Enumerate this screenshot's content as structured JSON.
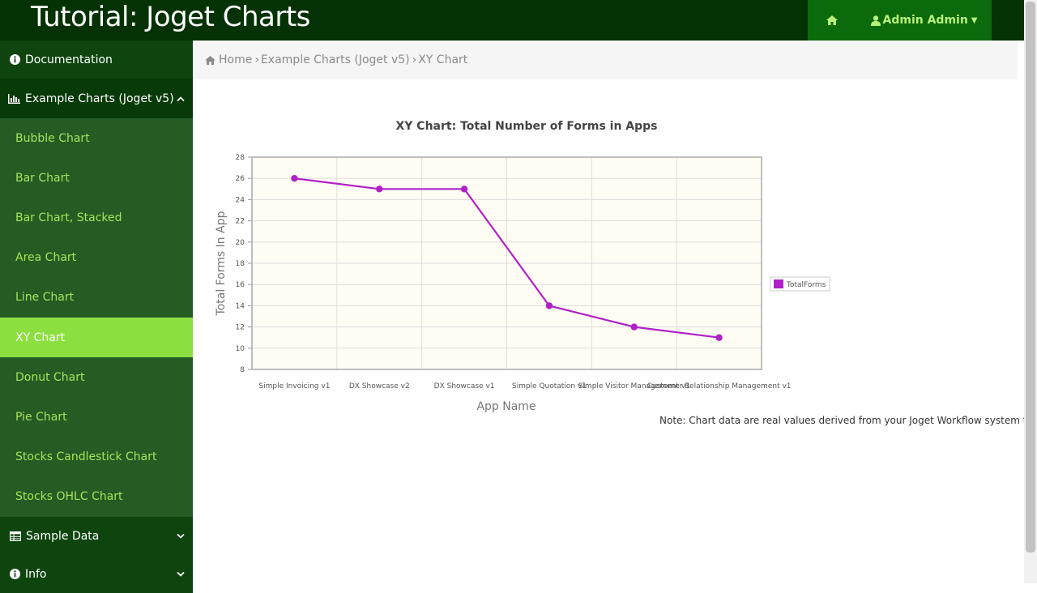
{
  "header": {
    "title": "Tutorial: Joget Charts",
    "user_label": "Admin Admin",
    "colors": {
      "bar": "#043204",
      "accent": "#0b6a0b",
      "link": "#b9f07a"
    }
  },
  "sidebar": {
    "documentation": "Documentation",
    "example_charts": "Example Charts (Joget v5)",
    "items": [
      {
        "label": "Bubble Chart",
        "active": false
      },
      {
        "label": "Bar Chart",
        "active": false
      },
      {
        "label": "Bar Chart, Stacked",
        "active": false
      },
      {
        "label": "Area Chart",
        "active": false
      },
      {
        "label": "Line Chart",
        "active": false
      },
      {
        "label": "XY Chart",
        "active": true
      },
      {
        "label": "Donut Chart",
        "active": false
      },
      {
        "label": "Pie Chart",
        "active": false
      },
      {
        "label": "Stocks Candlestick Chart",
        "active": false
      },
      {
        "label": "Stocks OHLC Chart",
        "active": false
      }
    ],
    "sample_data": "Sample Data",
    "info": "Info"
  },
  "breadcrumb": {
    "home": "Home",
    "sep": "›",
    "section": "Example Charts (Joget v5)",
    "current": "XY Chart"
  },
  "chart_data": {
    "type": "line",
    "title": "XY Chart: Total Number of Forms in Apps",
    "xlabel": "App Name",
    "ylabel": "Total Forms In App",
    "categories": [
      "Simple Invoicing v1",
      "DX Showcase v2",
      "DX Showcase v1",
      "Simple Quotation v1",
      "Simple Visitor Management v1",
      "Customer Relationship Management v1"
    ],
    "series": [
      {
        "name": "TotalForms",
        "color": "#b020c8",
        "values": [
          26,
          25,
          25,
          14,
          12,
          11
        ]
      }
    ],
    "ylim": [
      8,
      28
    ],
    "yticks": [
      8,
      10,
      12,
      14,
      16,
      18,
      20,
      22,
      24,
      26,
      28
    ],
    "grid": true,
    "legend": "right",
    "plot_bg": "#fffcf3"
  },
  "note": "Note: Chart data are real values derived from your Joget Workflow system tables."
}
